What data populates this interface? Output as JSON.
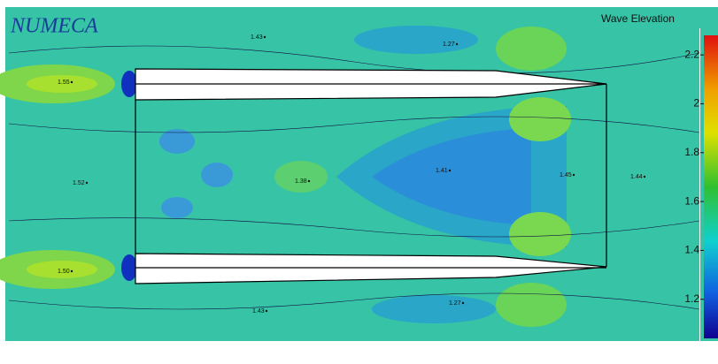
{
  "logo": "NUMECA",
  "colorbar": {
    "title": "Wave Elevation",
    "range": [
      1.04,
      2.28
    ],
    "ticks": [
      2.2,
      2,
      1.8,
      1.6,
      1.4,
      1.2
    ]
  },
  "labels": [
    "1.43",
    "1.27",
    "1.55",
    "1.52",
    "1.38",
    "1.41",
    "1.45",
    "1.44",
    "1.50",
    "1.43",
    "1.27"
  ]
}
